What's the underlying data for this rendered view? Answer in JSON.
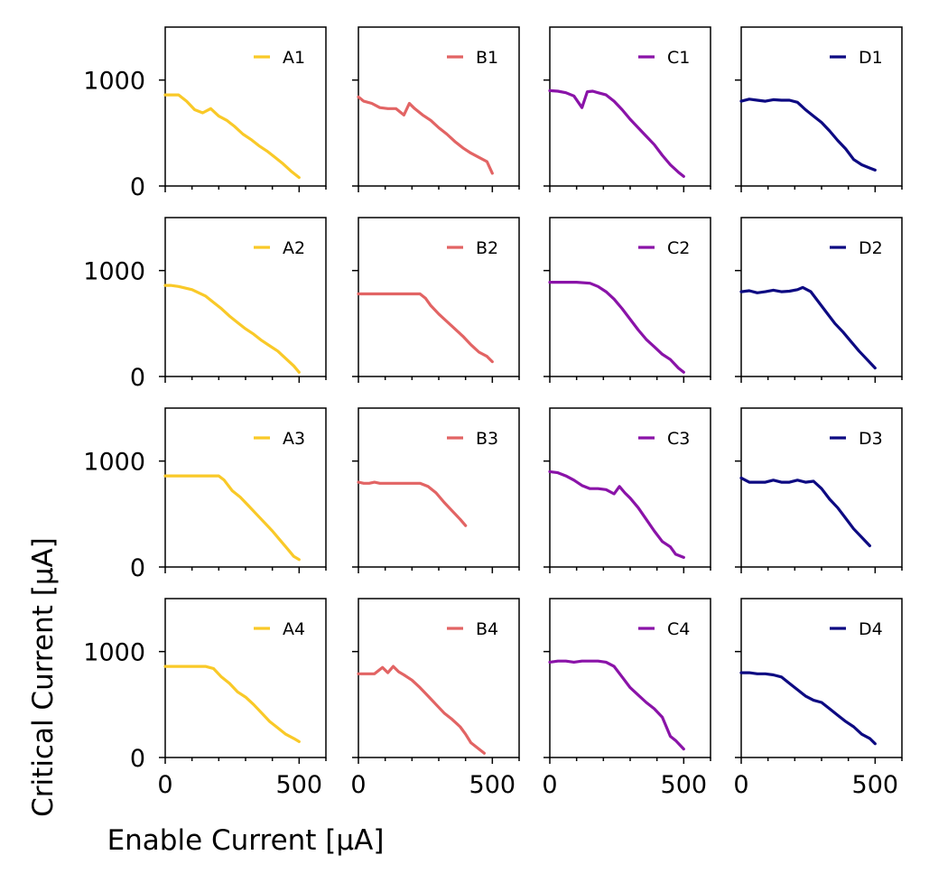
{
  "figure": {
    "xlabel": "Enable Current [µA]",
    "ylabel": "Critical Current [µA]"
  },
  "chart_data": {
    "type": "line",
    "grid": false,
    "legend_placement": "upper right",
    "xlim": [
      0,
      600
    ],
    "ylim": [
      0,
      1500
    ],
    "xticks_major": [
      0,
      500
    ],
    "xticks_minor": [
      100,
      200,
      300,
      400,
      600
    ],
    "yticks": [
      0,
      1000
    ],
    "rows": 4,
    "cols": 4,
    "colors": {
      "A": "#f9c928",
      "B": "#e26464",
      "C": "#8a13a8",
      "D": "#0d0a82"
    },
    "panels": [
      {
        "name": "A1",
        "color": "#f9c928",
        "x": [
          0,
          20,
          50,
          80,
          110,
          140,
          170,
          200,
          230,
          260,
          290,
          320,
          350,
          380,
          410,
          440,
          470,
          500
        ],
        "y": [
          860,
          860,
          860,
          800,
          720,
          690,
          730,
          660,
          620,
          560,
          490,
          440,
          380,
          330,
          270,
          210,
          140,
          80
        ]
      },
      {
        "name": "B1",
        "color": "#e26464",
        "x": [
          0,
          20,
          50,
          80,
          110,
          140,
          170,
          190,
          210,
          240,
          270,
          300,
          330,
          360,
          390,
          420,
          450,
          480,
          500
        ],
        "y": [
          840,
          800,
          780,
          740,
          730,
          730,
          670,
          780,
          730,
          670,
          620,
          550,
          490,
          420,
          360,
          310,
          270,
          230,
          120
        ]
      },
      {
        "name": "C1",
        "color": "#8a13a8",
        "x": [
          0,
          30,
          60,
          90,
          120,
          140,
          160,
          180,
          210,
          240,
          270,
          300,
          330,
          360,
          390,
          420,
          450,
          480,
          500
        ],
        "y": [
          900,
          895,
          880,
          850,
          740,
          890,
          895,
          880,
          860,
          800,
          720,
          630,
          550,
          470,
          390,
          290,
          200,
          130,
          90
        ]
      },
      {
        "name": "D1",
        "color": "#0d0a82",
        "x": [
          0,
          30,
          60,
          90,
          120,
          150,
          180,
          210,
          240,
          270,
          300,
          330,
          360,
          390,
          420,
          450,
          480,
          500
        ],
        "y": [
          800,
          820,
          810,
          800,
          815,
          810,
          810,
          790,
          720,
          660,
          600,
          520,
          430,
          350,
          250,
          200,
          170,
          150
        ]
      },
      {
        "name": "A2",
        "color": "#f9c928",
        "x": [
          0,
          20,
          50,
          100,
          150,
          180,
          210,
          240,
          270,
          300,
          330,
          360,
          390,
          420,
          450,
          480,
          500
        ],
        "y": [
          860,
          860,
          850,
          820,
          760,
          700,
          640,
          570,
          510,
          450,
          400,
          340,
          290,
          240,
          170,
          100,
          40
        ]
      },
      {
        "name": "B2",
        "color": "#e26464",
        "x": [
          0,
          50,
          100,
          150,
          200,
          230,
          250,
          270,
          300,
          330,
          360,
          390,
          420,
          450,
          480,
          500
        ],
        "y": [
          780,
          780,
          780,
          780,
          780,
          780,
          740,
          670,
          590,
          520,
          450,
          380,
          300,
          230,
          190,
          140
        ]
      },
      {
        "name": "C2",
        "color": "#8a13a8",
        "x": [
          0,
          50,
          100,
          150,
          180,
          210,
          240,
          270,
          300,
          330,
          360,
          390,
          420,
          450,
          480,
          500
        ],
        "y": [
          890,
          890,
          890,
          880,
          850,
          800,
          730,
          640,
          540,
          440,
          350,
          280,
          210,
          160,
          80,
          40
        ]
      },
      {
        "name": "D2",
        "color": "#0d0a82",
        "x": [
          0,
          30,
          60,
          90,
          120,
          150,
          180,
          210,
          230,
          260,
          290,
          320,
          350,
          380,
          410,
          440,
          470,
          500
        ],
        "y": [
          800,
          810,
          790,
          800,
          815,
          800,
          805,
          820,
          840,
          800,
          700,
          600,
          500,
          420,
          330,
          240,
          160,
          80
        ]
      },
      {
        "name": "A3",
        "color": "#f9c928",
        "x": [
          0,
          50,
          100,
          150,
          200,
          220,
          250,
          280,
          310,
          340,
          370,
          400,
          430,
          460,
          480,
          500
        ],
        "y": [
          860,
          860,
          860,
          860,
          860,
          820,
          720,
          660,
          580,
          500,
          420,
          340,
          250,
          160,
          100,
          70
        ]
      },
      {
        "name": "B3",
        "color": "#e26464",
        "x": [
          0,
          20,
          40,
          60,
          80,
          110,
          140,
          170,
          200,
          230,
          260,
          290,
          320,
          350,
          380,
          400
        ],
        "y": [
          800,
          790,
          790,
          800,
          790,
          790,
          790,
          790,
          790,
          790,
          760,
          700,
          610,
          530,
          450,
          390
        ]
      },
      {
        "name": "C3",
        "color": "#8a13a8",
        "x": [
          0,
          30,
          60,
          90,
          120,
          150,
          180,
          210,
          240,
          260,
          280,
          300,
          330,
          360,
          390,
          420,
          450,
          470,
          500
        ],
        "y": [
          900,
          890,
          860,
          820,
          770,
          740,
          740,
          730,
          690,
          760,
          700,
          650,
          560,
          450,
          340,
          240,
          190,
          120,
          90
        ]
      },
      {
        "name": "D3",
        "color": "#0d0a82",
        "x": [
          0,
          30,
          60,
          90,
          120,
          150,
          180,
          210,
          240,
          270,
          300,
          330,
          360,
          390,
          420,
          450,
          480
        ],
        "y": [
          840,
          800,
          800,
          800,
          820,
          800,
          800,
          820,
          800,
          810,
          740,
          640,
          560,
          460,
          360,
          280,
          200
        ]
      },
      {
        "name": "A4",
        "color": "#f9c928",
        "x": [
          0,
          50,
          100,
          150,
          180,
          210,
          240,
          270,
          300,
          330,
          360,
          390,
          420,
          450,
          480,
          500
        ],
        "y": [
          860,
          860,
          860,
          860,
          840,
          760,
          700,
          620,
          570,
          500,
          420,
          340,
          280,
          220,
          180,
          150
        ]
      },
      {
        "name": "B4",
        "color": "#e26464",
        "x": [
          0,
          30,
          60,
          90,
          110,
          130,
          150,
          170,
          200,
          230,
          260,
          290,
          320,
          350,
          380,
          400,
          420,
          450,
          470
        ],
        "y": [
          790,
          790,
          790,
          850,
          800,
          860,
          810,
          780,
          730,
          660,
          580,
          500,
          420,
          360,
          290,
          220,
          140,
          80,
          40
        ]
      },
      {
        "name": "C4",
        "color": "#8a13a8",
        "x": [
          0,
          30,
          60,
          90,
          120,
          150,
          180,
          210,
          240,
          270,
          300,
          330,
          360,
          390,
          420,
          450,
          470,
          500
        ],
        "y": [
          900,
          910,
          910,
          900,
          910,
          910,
          910,
          900,
          860,
          760,
          660,
          590,
          520,
          460,
          380,
          200,
          160,
          80
        ]
      },
      {
        "name": "D4",
        "color": "#0d0a82",
        "x": [
          0,
          30,
          60,
          90,
          120,
          150,
          180,
          210,
          240,
          270,
          300,
          330,
          360,
          390,
          420,
          450,
          480,
          500
        ],
        "y": [
          800,
          800,
          790,
          790,
          780,
          760,
          700,
          640,
          580,
          540,
          520,
          460,
          400,
          340,
          290,
          220,
          180,
          130
        ]
      }
    ]
  }
}
